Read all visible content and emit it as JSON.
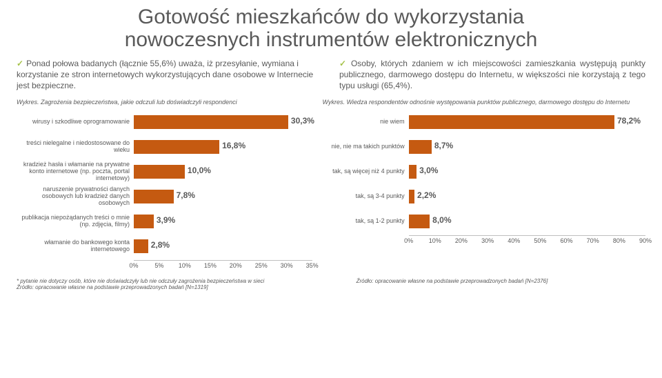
{
  "title_line1": "Gotowość mieszkańców do wykorzystania",
  "title_line2": "nowoczesnych instrumentów elektronicznych",
  "bullet_left": "Ponad połowa badanych (łącznie 55,6%) uważa, iż przesyłanie, wymiana i korzystanie ze stron internetowych wykorzystujących dane osobowe w Internecie jest bezpieczne.",
  "bullet_right": "Osoby, których zdaniem w ich miejscowości zamieszkania występują punkty publicznego, darmowego dostępu do Internetu, w większości nie korzystają z tego typu usługi (65,4%).",
  "caption_left": "Wykres. Zagrożenia bezpieczeństwa, jakie odczuli lub doświadczyli respondenci",
  "caption_right": "Wykres. Wiedza respondentów odnośnie występowania punktów publicznego, darmowego dostępu do Internetu",
  "chart_left": {
    "type": "bar-horizontal",
    "bar_color": "#c55a11",
    "value_color": "#595959",
    "label_fontsize": 9,
    "value_fontsize": 12,
    "xmax": 35,
    "xtick_step": 5,
    "ticks": [
      "0%",
      "5%",
      "10%",
      "15%",
      "20%",
      "25%",
      "30%",
      "35%"
    ],
    "rows": [
      {
        "label": "wirusy i szkodliwe oprogramowanie",
        "value": 30.3,
        "text": "30,3%"
      },
      {
        "label": "treści nielegalne i niedostosowane do wieku",
        "value": 16.8,
        "text": "16,8%"
      },
      {
        "label": "kradzież hasła i włamanie na prywatne konto internetowe (np. poczta, portal internetowy)",
        "value": 10.0,
        "text": "10,0%"
      },
      {
        "label": "naruszenie prywatności danych osobowych lub kradzież danych osobowych",
        "value": 7.8,
        "text": "7,8%"
      },
      {
        "label": "publikacja niepożądanych treści o mnie (np. zdjęcia, filmy)",
        "value": 3.9,
        "text": "3,9%"
      },
      {
        "label": "włamanie do bankowego konta internetowego",
        "value": 2.8,
        "text": "2,8%"
      }
    ]
  },
  "chart_right": {
    "type": "bar-horizontal",
    "bar_color": "#c55a11",
    "value_color": "#595959",
    "label_fontsize": 9,
    "value_fontsize": 12,
    "xmax": 90,
    "xtick_step": 10,
    "ticks": [
      "0%",
      "10%",
      "20%",
      "30%",
      "40%",
      "50%",
      "60%",
      "70%",
      "80%",
      "90%"
    ],
    "rows": [
      {
        "label": "nie wiem",
        "value": 78.2,
        "text": "78,2%"
      },
      {
        "label": "nie, nie ma takich punktów",
        "value": 8.7,
        "text": "8,7%"
      },
      {
        "label": "tak, są więcej niż 4 punkty",
        "value": 3.0,
        "text": "3,0%"
      },
      {
        "label": "tak, są 3-4 punkty",
        "value": 2.2,
        "text": "2,2%"
      },
      {
        "label": "tak, są 1-2 punkty",
        "value": 8.0,
        "text": "8,0%"
      }
    ]
  },
  "footnote_left_line1": "* pytanie nie dotyczy osób, które nie doświadczyły lub nie odczuły zagrożenia bezpieczeństwa w sieci",
  "footnote_left_line2": "Źródło: opracowanie własne na podstawie przeprowadzonych badań [N=1319]",
  "footnote_right": "Źródło: opracowanie własne na podstawie przeprowadzonych badań [N=2376]"
}
